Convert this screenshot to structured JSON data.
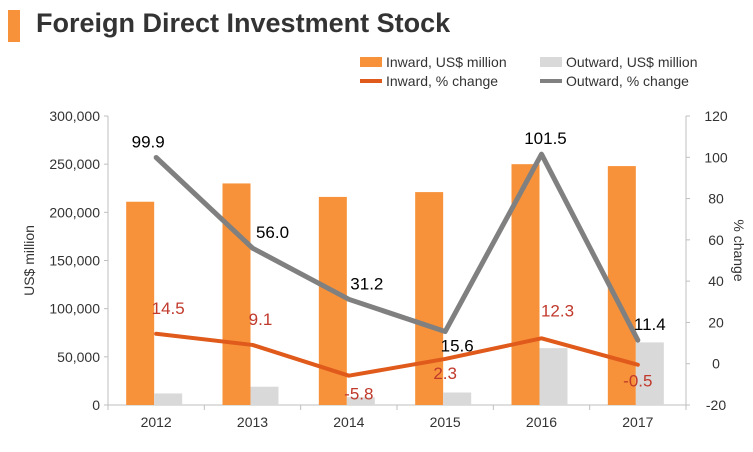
{
  "colors": {
    "inward_bar": "#f7923a",
    "outward_bar": "#d9d9d9",
    "inward_line": "#e05a1b",
    "outward_line": "#808080",
    "inward_label": "#c0392b",
    "outward_label": "#000000",
    "title_accent": "#f7923a"
  },
  "chart_data": {
    "type": "bar",
    "title": "Foreign Direct Investment Stock",
    "categories": [
      "2012",
      "2013",
      "2014",
      "2015",
      "2016",
      "2017"
    ],
    "series": [
      {
        "name": "Inward, US$ million",
        "kind": "bar",
        "axis": "left",
        "values": [
          211000,
          230000,
          216000,
          221000,
          250000,
          248000
        ]
      },
      {
        "name": "Outward, US$ million",
        "kind": "bar",
        "axis": "left",
        "values": [
          12000,
          19000,
          8000,
          13000,
          59000,
          65000
        ]
      },
      {
        "name": "Inward, % change",
        "kind": "line",
        "axis": "right",
        "values": [
          14.5,
          9.1,
          -5.8,
          2.3,
          12.3,
          -0.5
        ],
        "labels": [
          "14.5",
          "9.1",
          "-5.8",
          "2.3",
          "12.3",
          "-0.5"
        ]
      },
      {
        "name": "Outward, % change",
        "kind": "line",
        "axis": "right",
        "values": [
          99.9,
          56.0,
          31.2,
          15.6,
          101.5,
          11.4
        ],
        "labels": [
          "99.9",
          "56.0",
          "31.2",
          "15.6",
          "101.5",
          "11.4"
        ]
      }
    ],
    "ylabel": "US$ million",
    "ylim": [
      0,
      300000
    ],
    "yticks": [
      0,
      50000,
      100000,
      150000,
      200000,
      250000,
      300000
    ],
    "ytick_labels": [
      "0",
      "50,000",
      "100,000",
      "150,000",
      "200,000",
      "250,000",
      "300,000"
    ],
    "y2label": "% change",
    "y2lim": [
      -20,
      120
    ],
    "y2ticks": [
      -20,
      0,
      20,
      40,
      60,
      80,
      100,
      120
    ],
    "y2tick_labels": [
      "-20",
      "0",
      "20",
      "40",
      "60",
      "80",
      "100",
      "120"
    ],
    "legend_position": "top-right",
    "grid": false
  }
}
